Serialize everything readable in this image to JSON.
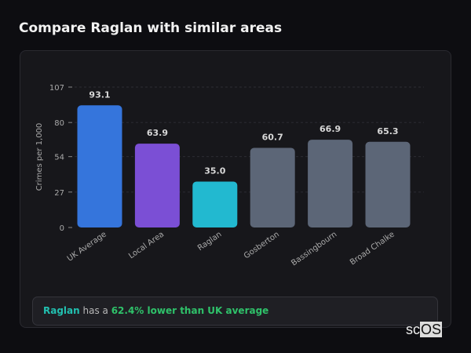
{
  "title": "Compare Raglan with similar areas",
  "chart_data": {
    "type": "bar",
    "categories": [
      "UK Average",
      "Local Area",
      "Raglan",
      "Gosberton",
      "Bassingbourn",
      "Broad Chalke"
    ],
    "values": [
      93.1,
      63.9,
      35.0,
      60.7,
      66.9,
      65.3
    ],
    "value_labels": [
      "93.1",
      "63.9",
      "35.0",
      "60.7",
      "66.9",
      "65.3"
    ],
    "colors": [
      "#3575dc",
      "#7b4fd5",
      "#22b9d0",
      "#5c6677",
      "#5c6677",
      "#5c6677"
    ],
    "ylabel": "Crimes per 1,000",
    "yticks": [
      0,
      27,
      54,
      80,
      107
    ],
    "ylim": [
      0,
      107
    ],
    "grid": true
  },
  "insight": {
    "place": "Raglan",
    "middle": " has a ",
    "highlight": "62.4% lower than UK average"
  },
  "logo": {
    "text_a": "sc",
    "text_b": "OS"
  }
}
